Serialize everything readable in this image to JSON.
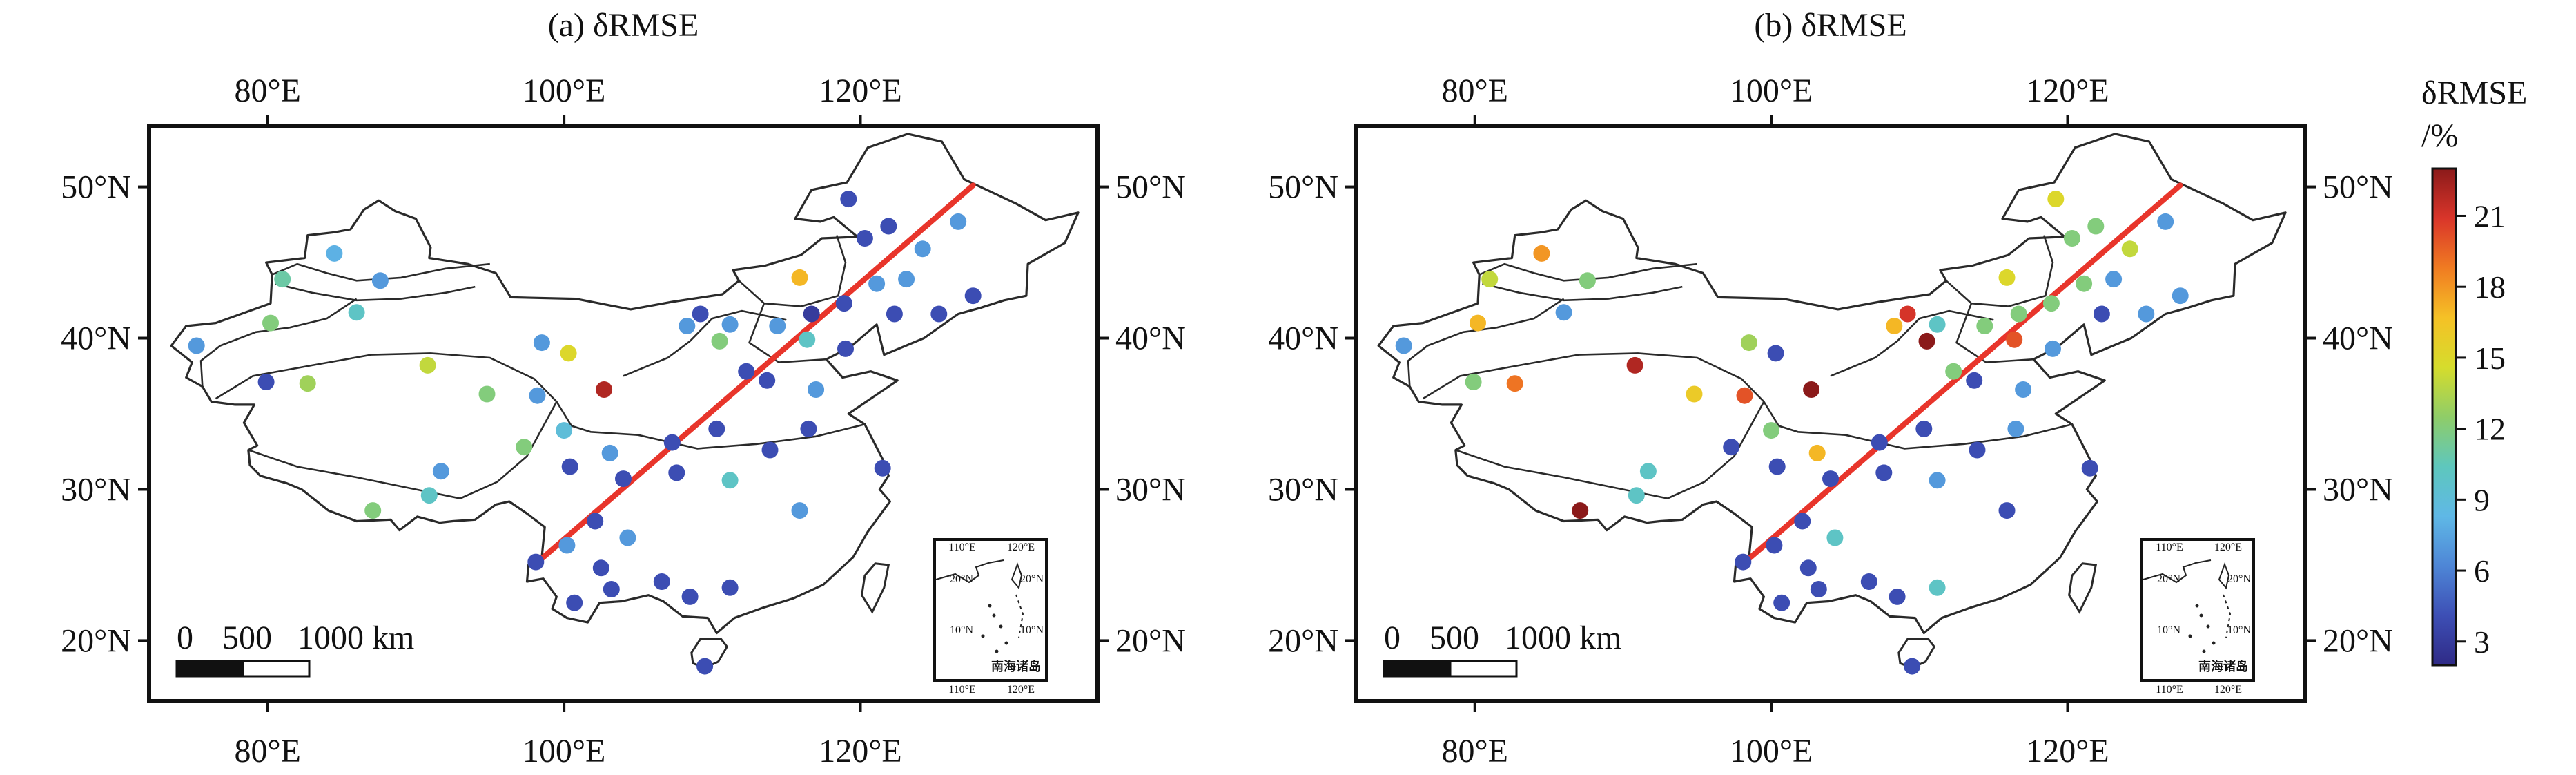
{
  "panels": [
    {
      "title": "(a) δRMSE",
      "x_ticks": [
        {
          "lon": 80,
          "label": "80°E"
        },
        {
          "lon": 100,
          "label": "100°E"
        },
        {
          "lon": 120,
          "label": "120°E"
        }
      ],
      "y_ticks": [
        {
          "lat": 20,
          "label": "20°N"
        },
        {
          "lat": 30,
          "label": "30°N"
        },
        {
          "lat": 40,
          "label": "40°N"
        },
        {
          "lat": 50,
          "label": "50°N"
        }
      ],
      "scale_bar": {
        "labels": [
          "0",
          "500",
          "1000 km"
        ]
      },
      "inset": {
        "x_labels": [
          "110°E",
          "120°E"
        ],
        "y_labels": [
          "20°N",
          "10°N"
        ],
        "caption": "南海诸岛"
      },
      "stations": [
        {
          "lon": 75.2,
          "lat": 39.5,
          "v": 7
        },
        {
          "lon": 84.5,
          "lat": 45.6,
          "v": 8
        },
        {
          "lon": 81.0,
          "lat": 43.9,
          "v": 11
        },
        {
          "lon": 80.2,
          "lat": 41.0,
          "v": 12
        },
        {
          "lon": 87.6,
          "lat": 43.8,
          "v": 7
        },
        {
          "lon": 86.0,
          "lat": 41.7,
          "v": 10
        },
        {
          "lon": 79.9,
          "lat": 37.1,
          "v": 4
        },
        {
          "lon": 82.7,
          "lat": 37.0,
          "v": 13
        },
        {
          "lon": 90.8,
          "lat": 38.2,
          "v": 14
        },
        {
          "lon": 94.8,
          "lat": 36.3,
          "v": 12
        },
        {
          "lon": 97.3,
          "lat": 32.8,
          "v": 12
        },
        {
          "lon": 98.2,
          "lat": 36.2,
          "v": 7
        },
        {
          "lon": 98.5,
          "lat": 39.7,
          "v": 7
        },
        {
          "lon": 100.3,
          "lat": 39.0,
          "v": 15
        },
        {
          "lon": 102.7,
          "lat": 36.6,
          "v": 22
        },
        {
          "lon": 100.0,
          "lat": 33.9,
          "v": 9
        },
        {
          "lon": 103.1,
          "lat": 32.4,
          "v": 7
        },
        {
          "lon": 100.4,
          "lat": 31.5,
          "v": 4
        },
        {
          "lon": 91.7,
          "lat": 31.2,
          "v": 7
        },
        {
          "lon": 90.9,
          "lat": 29.6,
          "v": 10
        },
        {
          "lon": 87.1,
          "lat": 28.6,
          "v": 12
        },
        {
          "lon": 108.3,
          "lat": 40.8,
          "v": 7
        },
        {
          "lon": 109.2,
          "lat": 41.6,
          "v": 4
        },
        {
          "lon": 111.2,
          "lat": 40.9,
          "v": 7
        },
        {
          "lon": 110.5,
          "lat": 39.8,
          "v": 12
        },
        {
          "lon": 112.3,
          "lat": 37.8,
          "v": 4
        },
        {
          "lon": 113.7,
          "lat": 37.2,
          "v": 4
        },
        {
          "lon": 114.4,
          "lat": 40.8,
          "v": 7
        },
        {
          "lon": 115.9,
          "lat": 44.0,
          "v": 17
        },
        {
          "lon": 116.7,
          "lat": 41.6,
          "v": 3
        },
        {
          "lon": 116.4,
          "lat": 39.9,
          "v": 10
        },
        {
          "lon": 117.0,
          "lat": 36.6,
          "v": 7
        },
        {
          "lon": 119.2,
          "lat": 49.2,
          "v": 4
        },
        {
          "lon": 120.3,
          "lat": 46.6,
          "v": 4
        },
        {
          "lon": 121.9,
          "lat": 47.4,
          "v": 4
        },
        {
          "lon": 124.2,
          "lat": 45.9,
          "v": 7
        },
        {
          "lon": 126.6,
          "lat": 47.7,
          "v": 7
        },
        {
          "lon": 121.1,
          "lat": 43.6,
          "v": 7
        },
        {
          "lon": 123.1,
          "lat": 43.9,
          "v": 7
        },
        {
          "lon": 118.9,
          "lat": 42.3,
          "v": 4
        },
        {
          "lon": 122.3,
          "lat": 41.6,
          "v": 4
        },
        {
          "lon": 125.3,
          "lat": 41.6,
          "v": 4
        },
        {
          "lon": 127.6,
          "lat": 42.8,
          "v": 4
        },
        {
          "lon": 119.0,
          "lat": 39.3,
          "v": 4
        },
        {
          "lon": 107.3,
          "lat": 33.1,
          "v": 4
        },
        {
          "lon": 107.6,
          "lat": 31.1,
          "v": 4
        },
        {
          "lon": 110.3,
          "lat": 34.0,
          "v": 4
        },
        {
          "lon": 111.2,
          "lat": 30.6,
          "v": 10
        },
        {
          "lon": 115.9,
          "lat": 28.6,
          "v": 7
        },
        {
          "lon": 113.9,
          "lat": 32.6,
          "v": 4
        },
        {
          "lon": 116.5,
          "lat": 34.0,
          "v": 4
        },
        {
          "lon": 104.0,
          "lat": 30.7,
          "v": 4
        },
        {
          "lon": 102.1,
          "lat": 27.9,
          "v": 4
        },
        {
          "lon": 104.3,
          "lat": 26.8,
          "v": 7
        },
        {
          "lon": 100.2,
          "lat": 26.3,
          "v": 7
        },
        {
          "lon": 98.1,
          "lat": 25.2,
          "v": 4
        },
        {
          "lon": 102.5,
          "lat": 24.8,
          "v": 4
        },
        {
          "lon": 103.2,
          "lat": 23.4,
          "v": 4
        },
        {
          "lon": 106.6,
          "lat": 23.9,
          "v": 4
        },
        {
          "lon": 108.5,
          "lat": 22.9,
          "v": 4
        },
        {
          "lon": 111.2,
          "lat": 23.5,
          "v": 4
        },
        {
          "lon": 100.7,
          "lat": 22.5,
          "v": 4
        },
        {
          "lon": 109.5,
          "lat": 18.3,
          "v": 4
        },
        {
          "lon": 121.5,
          "lat": 31.4,
          "v": 4
        }
      ]
    },
    {
      "title": "(b) δRMSE",
      "x_ticks": [
        {
          "lon": 80,
          "label": "80°E"
        },
        {
          "lon": 100,
          "label": "100°E"
        },
        {
          "lon": 120,
          "label": "120°E"
        }
      ],
      "y_ticks": [
        {
          "lat": 20,
          "label": "20°N"
        },
        {
          "lat": 30,
          "label": "30°N"
        },
        {
          "lat": 40,
          "label": "40°N"
        },
        {
          "lat": 50,
          "label": "50°N"
        }
      ],
      "scale_bar": {
        "labels": [
          "0",
          "500",
          "1000 km"
        ]
      },
      "inset": {
        "x_labels": [
          "110°E",
          "120°E"
        ],
        "y_labels": [
          "20°N",
          "10°N"
        ],
        "caption": "南海诸岛"
      },
      "stations": [
        {
          "lon": 75.2,
          "lat": 39.5,
          "v": 7
        },
        {
          "lon": 84.5,
          "lat": 45.6,
          "v": 18
        },
        {
          "lon": 81.0,
          "lat": 43.9,
          "v": 14
        },
        {
          "lon": 80.2,
          "lat": 41.0,
          "v": 17
        },
        {
          "lon": 87.6,
          "lat": 43.8,
          "v": 12
        },
        {
          "lon": 86.0,
          "lat": 41.7,
          "v": 7
        },
        {
          "lon": 79.9,
          "lat": 37.1,
          "v": 12
        },
        {
          "lon": 82.7,
          "lat": 37.0,
          "v": 19
        },
        {
          "lon": 90.8,
          "lat": 38.2,
          "v": 22
        },
        {
          "lon": 94.8,
          "lat": 36.3,
          "v": 16
        },
        {
          "lon": 97.3,
          "lat": 32.8,
          "v": 4
        },
        {
          "lon": 98.2,
          "lat": 36.2,
          "v": 20
        },
        {
          "lon": 98.5,
          "lat": 39.7,
          "v": 13
        },
        {
          "lon": 100.3,
          "lat": 39.0,
          "v": 4
        },
        {
          "lon": 102.7,
          "lat": 36.6,
          "v": 23
        },
        {
          "lon": 100.0,
          "lat": 33.9,
          "v": 12
        },
        {
          "lon": 103.1,
          "lat": 32.4,
          "v": 17
        },
        {
          "lon": 100.4,
          "lat": 31.5,
          "v": 4
        },
        {
          "lon": 91.7,
          "lat": 31.2,
          "v": 10
        },
        {
          "lon": 90.9,
          "lat": 29.6,
          "v": 10
        },
        {
          "lon": 87.1,
          "lat": 28.6,
          "v": 23
        },
        {
          "lon": 108.3,
          "lat": 40.8,
          "v": 17
        },
        {
          "lon": 109.2,
          "lat": 41.6,
          "v": 21
        },
        {
          "lon": 111.2,
          "lat": 40.9,
          "v": 10
        },
        {
          "lon": 110.5,
          "lat": 39.8,
          "v": 23
        },
        {
          "lon": 112.3,
          "lat": 37.8,
          "v": 12
        },
        {
          "lon": 113.7,
          "lat": 37.2,
          "v": 4
        },
        {
          "lon": 114.4,
          "lat": 40.8,
          "v": 12
        },
        {
          "lon": 115.9,
          "lat": 44.0,
          "v": 15
        },
        {
          "lon": 116.7,
          "lat": 41.6,
          "v": 12
        },
        {
          "lon": 116.4,
          "lat": 39.9,
          "v": 20
        },
        {
          "lon": 117.0,
          "lat": 36.6,
          "v": 7
        },
        {
          "lon": 119.2,
          "lat": 49.2,
          "v": 15
        },
        {
          "lon": 120.3,
          "lat": 46.6,
          "v": 12
        },
        {
          "lon": 121.9,
          "lat": 47.4,
          "v": 12
        },
        {
          "lon": 124.2,
          "lat": 45.9,
          "v": 14
        },
        {
          "lon": 126.6,
          "lat": 47.7,
          "v": 7
        },
        {
          "lon": 121.1,
          "lat": 43.6,
          "v": 12
        },
        {
          "lon": 123.1,
          "lat": 43.9,
          "v": 7
        },
        {
          "lon": 118.9,
          "lat": 42.3,
          "v": 12
        },
        {
          "lon": 122.3,
          "lat": 41.6,
          "v": 4
        },
        {
          "lon": 125.3,
          "lat": 41.6,
          "v": 7
        },
        {
          "lon": 127.6,
          "lat": 42.8,
          "v": 7
        },
        {
          "lon": 119.0,
          "lat": 39.3,
          "v": 7
        },
        {
          "lon": 107.3,
          "lat": 33.1,
          "v": 4
        },
        {
          "lon": 107.6,
          "lat": 31.1,
          "v": 4
        },
        {
          "lon": 110.3,
          "lat": 34.0,
          "v": 4
        },
        {
          "lon": 111.2,
          "lat": 30.6,
          "v": 7
        },
        {
          "lon": 115.9,
          "lat": 28.6,
          "v": 4
        },
        {
          "lon": 113.9,
          "lat": 32.6,
          "v": 4
        },
        {
          "lon": 116.5,
          "lat": 34.0,
          "v": 7
        },
        {
          "lon": 104.0,
          "lat": 30.7,
          "v": 4
        },
        {
          "lon": 102.1,
          "lat": 27.9,
          "v": 4
        },
        {
          "lon": 104.3,
          "lat": 26.8,
          "v": 10
        },
        {
          "lon": 100.2,
          "lat": 26.3,
          "v": 4
        },
        {
          "lon": 98.1,
          "lat": 25.2,
          "v": 4
        },
        {
          "lon": 102.5,
          "lat": 24.8,
          "v": 4
        },
        {
          "lon": 103.2,
          "lat": 23.4,
          "v": 4
        },
        {
          "lon": 106.6,
          "lat": 23.9,
          "v": 4
        },
        {
          "lon": 108.5,
          "lat": 22.9,
          "v": 4
        },
        {
          "lon": 111.2,
          "lat": 23.5,
          "v": 10
        },
        {
          "lon": 100.7,
          "lat": 22.5,
          "v": 4
        },
        {
          "lon": 109.5,
          "lat": 18.3,
          "v": 4
        },
        {
          "lon": 121.5,
          "lat": 31.4,
          "v": 4
        }
      ]
    }
  ],
  "colorbar": {
    "title_line1": "δRMSE",
    "title_line2": "/%",
    "min": 2,
    "max": 23,
    "ticks": [
      {
        "v": 3,
        "label": "3"
      },
      {
        "v": 6,
        "label": "6"
      },
      {
        "v": 9,
        "label": "9"
      },
      {
        "v": 12,
        "label": "12"
      },
      {
        "v": 15,
        "label": "15"
      },
      {
        "v": 18,
        "label": "18"
      },
      {
        "v": 21,
        "label": "21"
      }
    ],
    "colormap": [
      "#2f2a86",
      "#3d4fb5",
      "#4e86d6",
      "#5fb8e6",
      "#5ec7bd",
      "#8fcd68",
      "#d6dc2c",
      "#f5c126",
      "#f07b22",
      "#d9352a",
      "#8b1a1a"
    ]
  },
  "colors": {
    "divider_line": "#e8352b",
    "frame": "#111111",
    "boundary": "#2a2a2a"
  }
}
